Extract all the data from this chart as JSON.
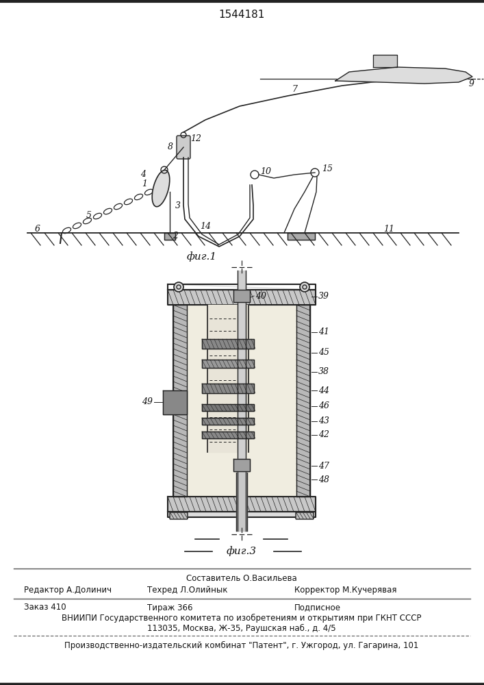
{
  "patent_number": "1544181",
  "bg_color": "#ffffff",
  "fig1_caption": "фиг.1",
  "fig3_caption": "фиг.3",
  "footer_line1_center": "Составитель О.Васильева",
  "footer_line2_left": "Редактор А.Долинич",
  "footer_line2_mid": "Техред Л.Олийнык",
  "footer_line2_right": "Корректор М.Кучерявая",
  "footer_line3_left": "Заказ 410",
  "footer_line3_mid": "Тираж 366",
  "footer_line3_right": "Подписное",
  "footer_line4": "ВНИИПИ Государственного комитета по изобретениям и открытиям при ГКНТ СССР",
  "footer_line5": "113035, Москва, Ж-35, Раушская наб., д. 4/5",
  "footer_line6": "Производственно-издательский комбинат \"Патент\", г. Ужгород, ул. Гагарина, 101",
  "lc": "#222222",
  "tc": "#111111",
  "hatch_color": "#555555"
}
